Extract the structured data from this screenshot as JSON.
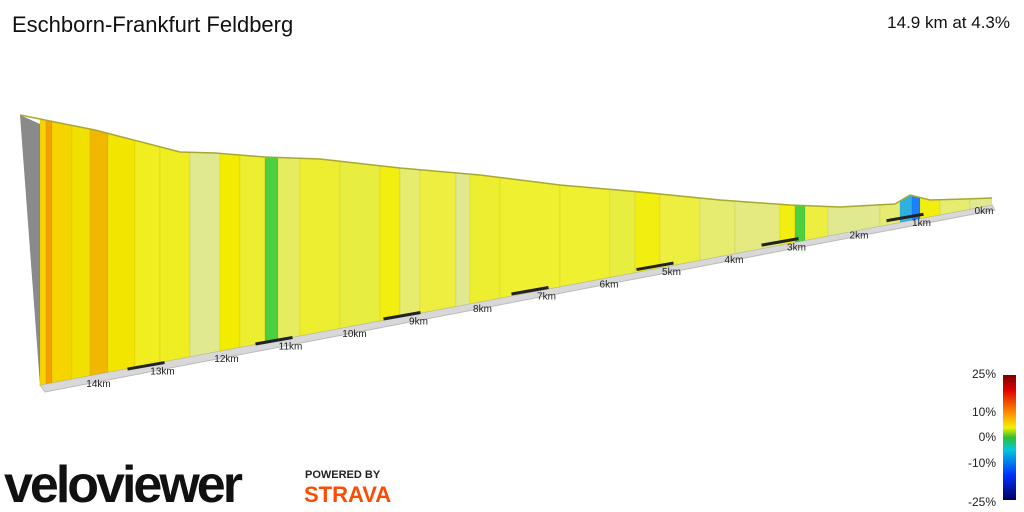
{
  "header": {
    "title": "Eschborn-Frankfurt Feldberg",
    "summary": "14.9 km at 4.3%"
  },
  "distance_labels": [
    "0km",
    "1km",
    "2km",
    "3km",
    "4km",
    "5km",
    "6km",
    "7km",
    "8km",
    "9km",
    "10km",
    "11km",
    "12km",
    "13km",
    "14km"
  ],
  "gradient_legend": [
    "25%",
    "10%",
    "0%",
    "-10%",
    "-25%"
  ],
  "branding": {
    "logo": "veloviewer",
    "powered_by": "POWERED BY",
    "partner": "STRAVA"
  }
}
